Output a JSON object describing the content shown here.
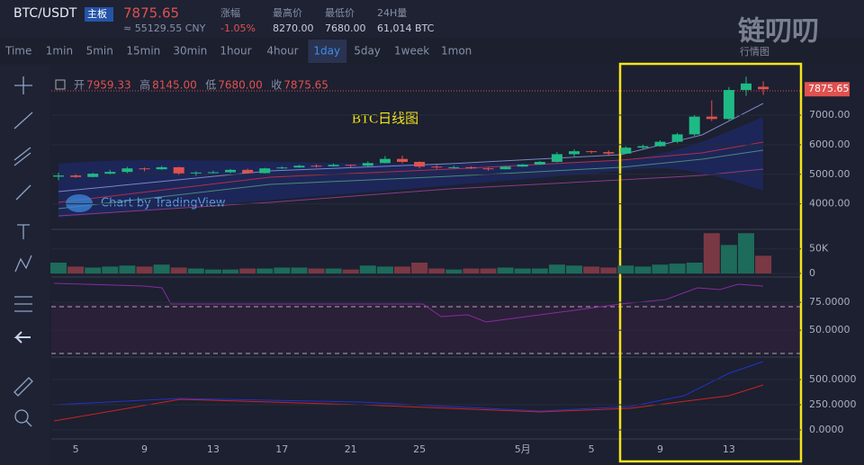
{
  "header": {
    "symbol": "BTC/USDT",
    "badge": "主板",
    "price": "7875.65",
    "cny": "≈ 55129.55 CNY",
    "stats": [
      {
        "label": "涨幅",
        "value": "-1.05%"
      },
      {
        "label": "最高价",
        "value": "8270.00"
      },
      {
        "label": "最低价",
        "value": "7680.00"
      },
      {
        "label": "24H量",
        "value": "61,014 BTC"
      }
    ]
  },
  "logo": {
    "text": "链叨叨",
    "sub": "行情图"
  },
  "toolbar": {
    "intervals": [
      "Time",
      "1min",
      "5min",
      "15min",
      "30min",
      "1hour",
      "4hour",
      "1day",
      "5day",
      "1week",
      "1mon"
    ],
    "active": "1day"
  },
  "chart": {
    "ohlc": [
      {
        "label": "开",
        "value": "7959.33"
      },
      {
        "label": "高",
        "value": "8145.00"
      },
      {
        "label": "低",
        "value": "7680.00"
      },
      {
        "label": "收",
        "value": "7875.65"
      }
    ],
    "annotation": "BTC日线图",
    "watermark": "Chart by TradingView",
    "dates": [
      null,
      "5",
      null,
      null,
      null,
      "9",
      null,
      null,
      null,
      "13",
      null,
      null,
      null,
      "17",
      null,
      null,
      null,
      "21",
      null,
      null,
      null,
      "25",
      null,
      null,
      null,
      null,
      null,
      "5月",
      null,
      null,
      null,
      "5",
      null,
      null,
      null,
      "9",
      null,
      null,
      null,
      "13",
      null,
      null
    ],
    "candles": [
      [
        4920,
        5050,
        4800,
        4960
      ],
      [
        4960,
        5000,
        4880,
        4910
      ],
      [
        4910,
        5050,
        4900,
        5020
      ],
      [
        5020,
        5150,
        5000,
        5080
      ],
      [
        5080,
        5250,
        5040,
        5200
      ],
      [
        5200,
        5230,
        5100,
        5170
      ],
      [
        5170,
        5280,
        5150,
        5240
      ],
      [
        5240,
        5250,
        4980,
        5030
      ],
      [
        5030,
        5100,
        4950,
        5060
      ],
      [
        5060,
        5120,
        5030,
        5070
      ],
      [
        5070,
        5180,
        5040,
        5150
      ],
      [
        5150,
        5190,
        5030,
        5040
      ],
      [
        5040,
        5220,
        5030,
        5200
      ],
      [
        5200,
        5270,
        5180,
        5230
      ],
      [
        5230,
        5320,
        5220,
        5290
      ],
      [
        5290,
        5340,
        5230,
        5270
      ],
      [
        5270,
        5360,
        5260,
        5320
      ],
      [
        5320,
        5330,
        5230,
        5290
      ],
      [
        5290,
        5440,
        5260,
        5380
      ],
      [
        5380,
        5620,
        5370,
        5520
      ],
      [
        5520,
        5630,
        5370,
        5420
      ],
      [
        5420,
        5440,
        5200,
        5260
      ],
      [
        5260,
        5320,
        5180,
        5230
      ],
      [
        5230,
        5290,
        5200,
        5240
      ],
      [
        5240,
        5270,
        5180,
        5200
      ],
      [
        5200,
        5230,
        5120,
        5170
      ],
      [
        5170,
        5280,
        5160,
        5260
      ],
      [
        5260,
        5350,
        5250,
        5330
      ],
      [
        5330,
        5450,
        5320,
        5420
      ],
      [
        5420,
        5750,
        5400,
        5680
      ],
      [
        5680,
        5840,
        5600,
        5780
      ],
      [
        5780,
        5800,
        5700,
        5750
      ],
      [
        5750,
        5810,
        5620,
        5700
      ],
      [
        5700,
        5950,
        5690,
        5900
      ],
      [
        5900,
        6000,
        5850,
        5950
      ],
      [
        5950,
        6150,
        5930,
        6100
      ],
      [
        6100,
        6400,
        6050,
        6350
      ],
      [
        6350,
        7000,
        6300,
        6950
      ],
      [
        6950,
        7500,
        6800,
        6870
      ],
      [
        6870,
        7950,
        6830,
        7850
      ],
      [
        7850,
        8300,
        7650,
        8070
      ],
      [
        7959.33,
        8145,
        7680,
        7875.65
      ]
    ],
    "up_color": "#1fb985",
    "down_color": "#e0514f",
    "ylim": [
      3230,
      8460
    ],
    "yticks": [
      {
        "value": 4000,
        "label": "4000.00"
      },
      {
        "value": 5000,
        "label": "5000.00"
      },
      {
        "value": 6000,
        "label": "6000.00"
      },
      {
        "value": 7000,
        "label": "7000.00"
      }
    ],
    "last_price": 7875.65
  },
  "volume": {
    "values": [
      22000,
      14000,
      12000,
      14000,
      16000,
      14000,
      18000,
      12000,
      10000,
      8000,
      8000,
      10000,
      10000,
      12000,
      12000,
      10000,
      10000,
      8000,
      16000,
      14000,
      14000,
      22000,
      10000,
      8000,
      10000,
      10000,
      12000,
      10000,
      10000,
      18000,
      16000,
      14000,
      12000,
      16000,
      14000,
      18000,
      20000,
      22000,
      82000,
      58000,
      82000,
      36000
    ],
    "ylim": [
      0,
      88000
    ],
    "yticks": [
      0,
      {
        "value": 50000,
        "label": "50K"
      }
    ]
  },
  "rsi": {
    "ylim": [
      26,
      96
    ],
    "yticks": [
      {
        "value": 50,
        "label": "50.0000"
      },
      {
        "value": 75,
        "label": "75.0000"
      }
    ]
  },
  "macd": {
    "ylim": [
      -107,
      696
    ],
    "yticks": [
      {
        "value": 0,
        "label": "0.0000"
      },
      {
        "value": 250,
        "label": "250.0000"
      },
      {
        "value": 500,
        "label": "500.0000"
      }
    ]
  }
}
